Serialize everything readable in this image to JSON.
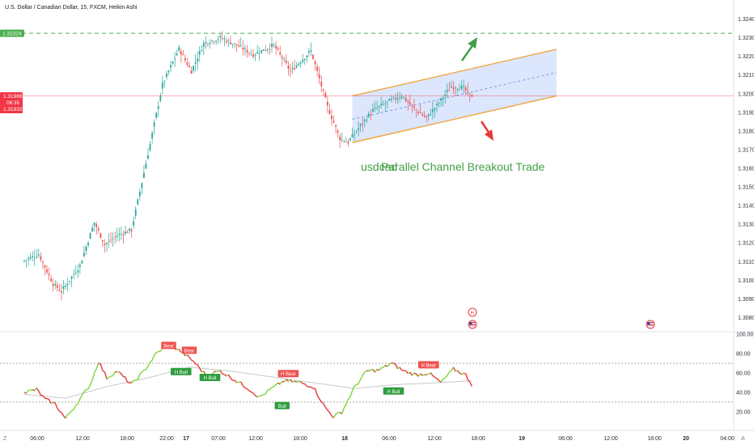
{
  "header": {
    "title": "U.S. Dollar / Canadian Dollar, 15, FXCM, Heikin Ashi"
  },
  "colors": {
    "bull": "#26a69a",
    "bear": "#ef5350",
    "channel_line": "#f0a030",
    "channel_fill": "#d6e2fb",
    "resistance": "#4caf50",
    "current_price": "#f23645",
    "arrow_up": "#43a047",
    "arrow_down": "#e53935",
    "annotation": "#43a047",
    "osc_ma": "#c8c8c8",
    "osc_bull": "#7cd63a",
    "osc_bear": "#e53935"
  },
  "price_tags": {
    "resistance": "1.32324",
    "current": "1.31988",
    "countdown": "06:35",
    "prev": "1.31932"
  },
  "annotations": {
    "symbol": "usdcad",
    "strategy": "Parallel Channel Breakout Trade"
  },
  "event_markers": {
    "upper": "H",
    "lower": "US-flag-icon"
  },
  "corner": {
    "left": "Z",
    "right": "A"
  },
  "chart_data": [
    {
      "type": "candlestick",
      "title": "U.S. Dollar / Canadian Dollar, 15, FXCM, Heikin Ashi",
      "ylim": [
        1.3075,
        1.3237
      ],
      "yticks": [
        "1.32400",
        "1.32300",
        "1.32200",
        "1.32100",
        "1.32000",
        "1.31900",
        "1.31800",
        "1.31700",
        "1.31600",
        "1.31500",
        "1.31400",
        "1.31300",
        "1.31200",
        "1.31100",
        "1.31000",
        "1.30900",
        "1.30800"
      ],
      "xticks": [
        "06:00",
        "12:00",
        "18:00",
        "22:00",
        "17",
        "07:00",
        "12:00",
        "18:00",
        "18",
        "06:00",
        "12:00",
        "18:00",
        "19",
        "06:00",
        "12:00",
        "18:00",
        "20",
        "04:00"
      ],
      "anchors": [
        [
          0,
          1.311
        ],
        [
          8,
          1.3114
        ],
        [
          15,
          1.3098
        ],
        [
          19,
          1.3094
        ],
        [
          28,
          1.3108
        ],
        [
          35,
          1.3131
        ],
        [
          40,
          1.3119
        ],
        [
          46,
          1.3124
        ],
        [
          53,
          1.3127
        ],
        [
          62,
          1.3173
        ],
        [
          68,
          1.3205
        ],
        [
          76,
          1.3224
        ],
        [
          82,
          1.3212
        ],
        [
          88,
          1.3227
        ],
        [
          96,
          1.323
        ],
        [
          104,
          1.3226
        ],
        [
          112,
          1.3221
        ],
        [
          122,
          1.3226
        ],
        [
          130,
          1.3212
        ],
        [
          140,
          1.3223
        ],
        [
          148,
          1.3193
        ],
        [
          154,
          1.3176
        ],
        [
          158,
          1.3174
        ],
        [
          164,
          1.3183
        ],
        [
          170,
          1.3191
        ],
        [
          178,
          1.3196
        ],
        [
          184,
          1.3199
        ],
        [
          190,
          1.3192
        ],
        [
          196,
          1.3187
        ],
        [
          202,
          1.3195
        ],
        [
          208,
          1.3204
        ],
        [
          214,
          1.3203
        ],
        [
          217,
          1.3199
        ]
      ],
      "resistance": 1.32324,
      "current": 1.31988,
      "channel": {
        "lower": [
          [
            159,
            1.31738
          ],
          [
            258,
            1.31988
          ]
        ],
        "upper": [
          [
            159,
            1.31988
          ],
          [
            258,
            1.32238
          ]
        ],
        "mid": [
          [
            159,
            1.31863
          ],
          [
            258,
            1.32113
          ]
        ]
      }
    },
    {
      "type": "line",
      "name": "oscillator",
      "ylim": [
        10,
        100
      ],
      "yticks": [
        "100.00",
        "80.00",
        "60.00",
        "40.00",
        "20.00"
      ],
      "levels": [
        70,
        30
      ],
      "anchors": [
        [
          0,
          40
        ],
        [
          6,
          43
        ],
        [
          10,
          33
        ],
        [
          15,
          28
        ],
        [
          20,
          13
        ],
        [
          26,
          30
        ],
        [
          32,
          48
        ],
        [
          36,
          72
        ],
        [
          40,
          55
        ],
        [
          45,
          62
        ],
        [
          52,
          48
        ],
        [
          58,
          62
        ],
        [
          64,
          80
        ],
        [
          70,
          90
        ],
        [
          76,
          82
        ],
        [
          82,
          72
        ],
        [
          88,
          58
        ],
        [
          95,
          62
        ],
        [
          102,
          53
        ],
        [
          108,
          45
        ],
        [
          114,
          35
        ],
        [
          120,
          44
        ],
        [
          126,
          52
        ],
        [
          134,
          50
        ],
        [
          140,
          46
        ],
        [
          146,
          24
        ],
        [
          150,
          15
        ],
        [
          154,
          20
        ],
        [
          160,
          45
        ],
        [
          166,
          62
        ],
        [
          172,
          63
        ],
        [
          178,
          70
        ],
        [
          184,
          62
        ],
        [
          190,
          58
        ],
        [
          196,
          60
        ],
        [
          202,
          50
        ],
        [
          208,
          64
        ],
        [
          214,
          58
        ],
        [
          217,
          48
        ]
      ],
      "ma": [
        [
          0,
          38
        ],
        [
          20,
          34
        ],
        [
          40,
          46
        ],
        [
          60,
          55
        ],
        [
          80,
          66
        ],
        [
          100,
          62
        ],
        [
          120,
          56
        ],
        [
          140,
          50
        ],
        [
          160,
          44
        ],
        [
          180,
          48
        ],
        [
          200,
          50
        ],
        [
          217,
          52
        ]
      ],
      "labels": [
        {
          "text": "Bear",
          "i": 70,
          "v": 88,
          "kind": "bear"
        },
        {
          "text": "Bear",
          "i": 80,
          "v": 83,
          "kind": "bear"
        },
        {
          "text": "H Bull",
          "i": 76,
          "v": 61,
          "kind": "bull"
        },
        {
          "text": "H Bull",
          "i": 90,
          "v": 55,
          "kind": "bull"
        },
        {
          "text": "H Bear",
          "i": 128,
          "v": 59,
          "kind": "bear"
        },
        {
          "text": "Bull",
          "i": 125,
          "v": 26,
          "kind": "bull"
        },
        {
          "text": "H Bull",
          "i": 179,
          "v": 41,
          "kind": "bull"
        },
        {
          "text": "H Bear",
          "i": 196,
          "v": 68,
          "kind": "bear"
        }
      ]
    }
  ]
}
